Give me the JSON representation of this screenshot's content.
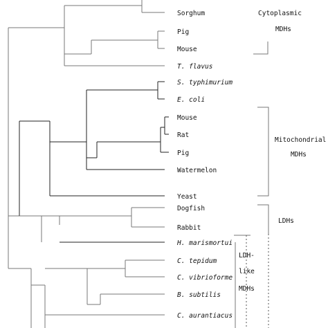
{
  "leaves": {
    "sorghum": "Sorghum",
    "pig_cyt": "Pig",
    "mouse_cyt": "Mouse",
    "t_flavus": "T. flavus",
    "s_typhimurium": "S. typhimurium",
    "e_coli": "E. coli",
    "mouse_mit": "Mouse",
    "rat": "Rat",
    "pig_mit": "Pig",
    "watermelon": "Watermelon",
    "yeast": "Yeast",
    "dogfish": "Dogfish",
    "rabbit": "Rabbit",
    "h_marismortui": "H. marismortui",
    "c_tepidum": "C. tepidum",
    "c_vibrioforme": "C. vibrioforme",
    "b_subtilis": "B. subtilis",
    "c_aurantiacus": "C. aurantiacus"
  },
  "groups": {
    "cytoplasmic_1": "Cytoplasmic",
    "cytoplasmic_2": "MDHs",
    "mitochondrial_1": "Mitochondrial",
    "mitochondrial_2": "MDHs",
    "ldhs": "LDHs",
    "ldh_like_1": "LDH-",
    "ldh_like_2": "like",
    "ldh_like_3": "MDHs"
  }
}
